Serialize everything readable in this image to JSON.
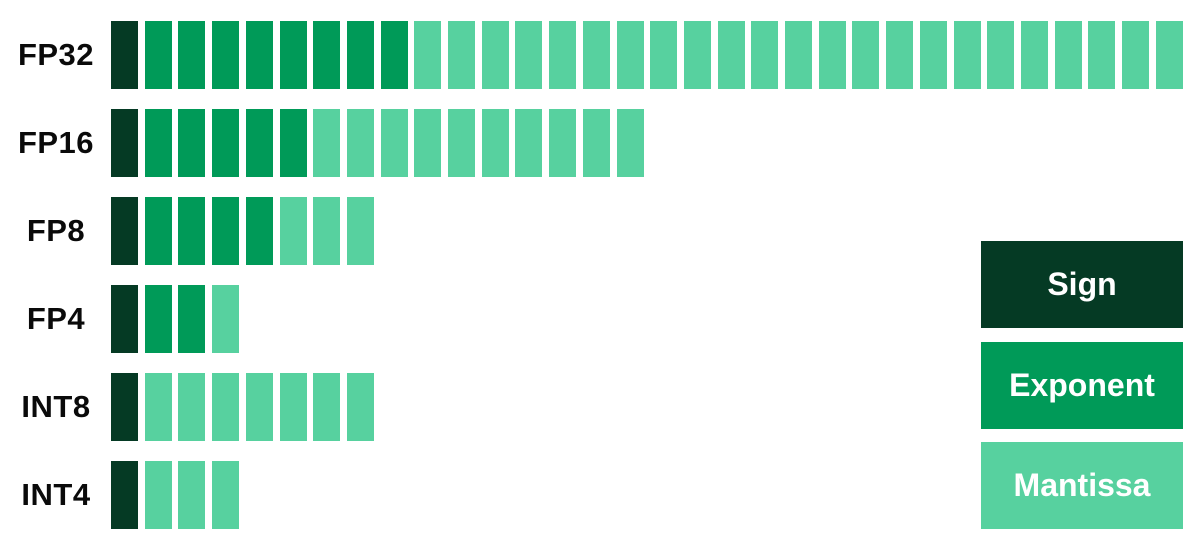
{
  "colors": {
    "sign": "#053a24",
    "exponent": "#009a58",
    "mantissa": "#57d19f"
  },
  "formats": [
    {
      "label": "FP32",
      "sign_bits": 1,
      "exponent_bits": 8,
      "mantissa_bits": 23
    },
    {
      "label": "FP16",
      "sign_bits": 1,
      "exponent_bits": 5,
      "mantissa_bits": 10
    },
    {
      "label": "FP8",
      "sign_bits": 1,
      "exponent_bits": 4,
      "mantissa_bits": 3
    },
    {
      "label": "FP4",
      "sign_bits": 1,
      "exponent_bits": 2,
      "mantissa_bits": 1
    },
    {
      "label": "INT8",
      "sign_bits": 1,
      "exponent_bits": 0,
      "mantissa_bits": 7
    },
    {
      "label": "INT4",
      "sign_bits": 1,
      "exponent_bits": 0,
      "mantissa_bits": 3
    }
  ],
  "legend": {
    "sign": "Sign",
    "exponent": "Exponent",
    "mantissa": "Mantissa"
  }
}
